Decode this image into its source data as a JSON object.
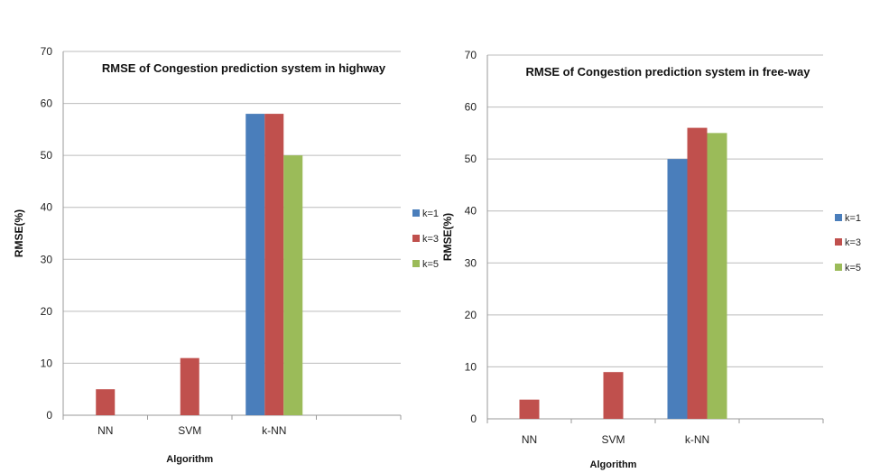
{
  "chart_data": [
    {
      "type": "bar",
      "title": "RMSE of Congestion prediction system in highway",
      "xlabel": "Algorithm",
      "ylabel": "RMSE(%)",
      "ylim": [
        0,
        70
      ],
      "yticks": [
        0,
        10,
        20,
        30,
        40,
        50,
        60,
        70
      ],
      "grid": true,
      "legend_position": "right",
      "categories": [
        "NN",
        "SVM",
        "k-NN",
        ""
      ],
      "series": [
        {
          "name": "k=1",
          "color": "#4a7ebb",
          "values": [
            null,
            null,
            58,
            null
          ]
        },
        {
          "name": "k=3",
          "color": "#c0504d",
          "values": [
            5,
            11,
            58,
            null
          ]
        },
        {
          "name": "k=5",
          "color": "#9bbb59",
          "values": [
            null,
            null,
            50,
            null
          ]
        }
      ]
    },
    {
      "type": "bar",
      "title": "RMSE of Congestion prediction system in free-way",
      "xlabel": "Algorithm",
      "ylabel": "RMSE(%)",
      "ylim": [
        0,
        70
      ],
      "yticks": [
        0,
        10,
        20,
        30,
        40,
        50,
        60,
        70
      ],
      "grid": true,
      "legend_position": "right",
      "categories": [
        "NN",
        "SVM",
        "k-NN",
        ""
      ],
      "series": [
        {
          "name": "k=1",
          "color": "#4a7ebb",
          "values": [
            null,
            null,
            50,
            null
          ]
        },
        {
          "name": "k=3",
          "color": "#c0504d",
          "values": [
            3.7,
            9,
            56,
            null
          ]
        },
        {
          "name": "k=5",
          "color": "#9bbb59",
          "values": [
            null,
            null,
            55,
            null
          ]
        }
      ]
    }
  ]
}
